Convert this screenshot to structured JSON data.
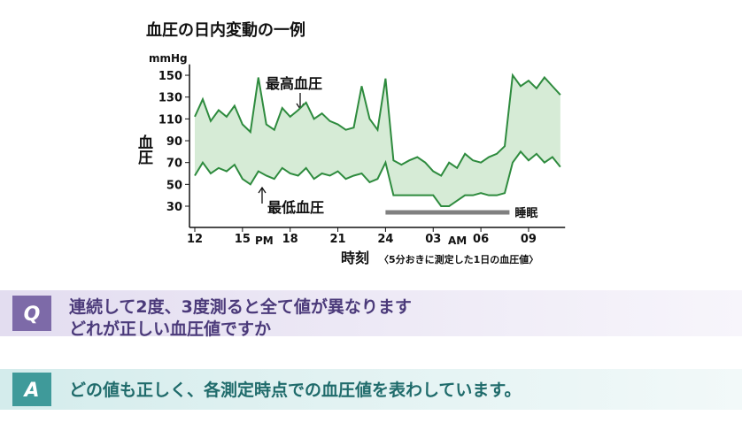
{
  "chart_data": {
    "type": "band",
    "title": "血圧の日内変動の一例",
    "y_unit": "mmHg",
    "y_label": "血圧",
    "x_label": "時刻",
    "x_note": "〈5分おきに測定した1日の血圧値〉",
    "pm_label": "PM",
    "am_label": "AM",
    "x": [
      12,
      12.5,
      13,
      13.5,
      14,
      14.5,
      15,
      15.5,
      16,
      16.5,
      17,
      17.5,
      18,
      18.5,
      19,
      19.5,
      20,
      20.5,
      21,
      21.5,
      22,
      22.5,
      23,
      23.5,
      24,
      24.5,
      25,
      25.5,
      26,
      26.5,
      27,
      27.5,
      28,
      28.5,
      29,
      29.5,
      30,
      30.5,
      31,
      31.5,
      32,
      32.5,
      33,
      33.5,
      34,
      34.5,
      35
    ],
    "series": [
      {
        "name": "最高血圧",
        "color": "#2e8b3e",
        "values": [
          112,
          128,
          108,
          118,
          112,
          122,
          105,
          98,
          148,
          105,
          100,
          120,
          112,
          118,
          125,
          110,
          115,
          108,
          105,
          100,
          102,
          140,
          110,
          100,
          147,
          72,
          68,
          72,
          75,
          70,
          62,
          58,
          70,
          65,
          78,
          72,
          70,
          75,
          78,
          85,
          150,
          140,
          145,
          138,
          148,
          140,
          132
        ]
      },
      {
        "name": "最低血圧",
        "color": "#2e8b3e",
        "values": [
          58,
          70,
          60,
          65,
          62,
          68,
          55,
          50,
          62,
          58,
          55,
          65,
          60,
          58,
          65,
          55,
          60,
          58,
          62,
          55,
          58,
          60,
          52,
          55,
          70,
          40,
          40,
          40,
          40,
          40,
          40,
          30,
          30,
          35,
          40,
          40,
          42,
          40,
          40,
          42,
          70,
          80,
          72,
          78,
          70,
          75,
          66
        ]
      }
    ],
    "band_color": "#d6ebd6",
    "sleep": {
      "label": "睡眠",
      "x": [
        24,
        31.8
      ],
      "color": "#808080"
    },
    "xlim": [
      12,
      35.3
    ],
    "ylim": [
      12,
      160
    ],
    "xticks": [
      12,
      15,
      18,
      21,
      24,
      {
        "value": 27,
        "label": "03"
      },
      {
        "value": 30,
        "label": "06"
      },
      {
        "value": 33,
        "label": "09"
      }
    ],
    "yticks": [
      30,
      50,
      70,
      90,
      110,
      130,
      150
    ]
  },
  "qa": {
    "q_mark": "Q",
    "question": [
      "連続して2度、3度測ると全て値が異なります",
      "どれが正しい血圧値ですか"
    ],
    "a_mark": "A",
    "answer": "どの値も正しく、各測定時点での血圧値を表わしています。"
  }
}
